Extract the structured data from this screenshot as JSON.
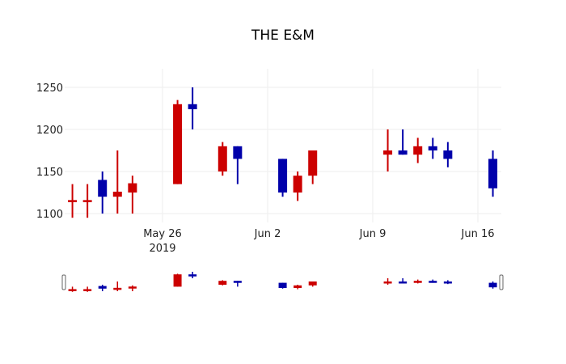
{
  "chart_data": {
    "type": "candlestick",
    "title": "THE E&M",
    "xlabel": "",
    "ylabel": "",
    "ylim": [
      1088,
      1255
    ],
    "y_ticks": [
      1100,
      1150,
      1200,
      1250
    ],
    "x_ticks": [
      {
        "label": "May 26",
        "sub": "2019",
        "date": "2019-05-26"
      },
      {
        "label": "Jun 2",
        "sub": "",
        "date": "2019-06-02"
      },
      {
        "label": "Jun 9",
        "sub": "",
        "date": "2019-06-09"
      },
      {
        "label": "Jun 16",
        "sub": "",
        "date": "2019-06-16"
      }
    ],
    "grid": true,
    "rangeslider": true,
    "increasing_color": "#0000aa",
    "decreasing_color": "#cc0000",
    "candles": [
      {
        "date": "2019-05-20",
        "open": 1116,
        "high": 1135,
        "low": 1095,
        "close": 1115
      },
      {
        "date": "2019-05-21",
        "open": 1116,
        "high": 1135,
        "low": 1095,
        "close": 1115
      },
      {
        "date": "2019-05-22",
        "open": 1120,
        "high": 1150,
        "low": 1100,
        "close": 1140
      },
      {
        "date": "2019-05-23",
        "open": 1126,
        "high": 1175,
        "low": 1100,
        "close": 1120
      },
      {
        "date": "2019-05-24",
        "open": 1136,
        "high": 1145,
        "low": 1100,
        "close": 1125
      },
      {
        "date": "2019-05-27",
        "open": 1230,
        "high": 1235,
        "low": 1135,
        "close": 1135
      },
      {
        "date": "2019-05-28",
        "open": 1224,
        "high": 1250,
        "low": 1200,
        "close": 1230
      },
      {
        "date": "2019-05-30",
        "open": 1180,
        "high": 1185,
        "low": 1145,
        "close": 1150
      },
      {
        "date": "2019-05-31",
        "open": 1165,
        "high": 1180,
        "low": 1135,
        "close": 1180
      },
      {
        "date": "2019-06-03",
        "open": 1125,
        "high": 1165,
        "low": 1120,
        "close": 1165
      },
      {
        "date": "2019-06-04",
        "open": 1145,
        "high": 1150,
        "low": 1115,
        "close": 1125
      },
      {
        "date": "2019-06-05",
        "open": 1175,
        "high": 1175,
        "low": 1135,
        "close": 1145
      },
      {
        "date": "2019-06-10",
        "open": 1175,
        "high": 1200,
        "low": 1150,
        "close": 1170
      },
      {
        "date": "2019-06-11",
        "open": 1170,
        "high": 1200,
        "low": 1170,
        "close": 1175
      },
      {
        "date": "2019-06-12",
        "open": 1180,
        "high": 1190,
        "low": 1160,
        "close": 1170
      },
      {
        "date": "2019-06-13",
        "open": 1175,
        "high": 1190,
        "low": 1165,
        "close": 1180
      },
      {
        "date": "2019-06-14",
        "open": 1165,
        "high": 1185,
        "low": 1155,
        "close": 1175
      },
      {
        "date": "2019-06-17",
        "open": 1130,
        "high": 1175,
        "low": 1120,
        "close": 1165
      }
    ]
  }
}
